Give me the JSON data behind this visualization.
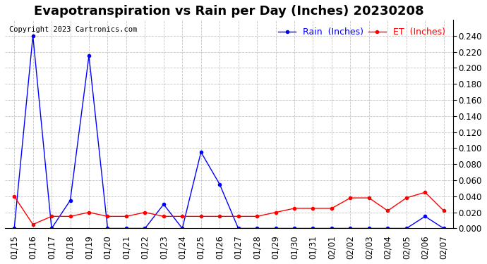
{
  "title": "Evapotranspiration vs Rain per Day (Inches) 20230208",
  "copyright": "Copyright 2023 Cartronics.com",
  "legend_rain": "Rain  (Inches)",
  "legend_et": "ET  (Inches)",
  "dates": [
    "01/15",
    "01/16",
    "01/17",
    "01/18",
    "01/19",
    "01/20",
    "01/21",
    "01/22",
    "01/23",
    "01/24",
    "01/25",
    "01/26",
    "01/27",
    "01/28",
    "01/29",
    "01/30",
    "01/31",
    "02/01",
    "02/02",
    "02/03",
    "02/04",
    "02/05",
    "02/06",
    "02/07"
  ],
  "rain": [
    0.0,
    0.24,
    0.0,
    0.035,
    0.215,
    0.0,
    0.0,
    0.0,
    0.03,
    0.0,
    0.095,
    0.055,
    0.0,
    0.0,
    0.0,
    0.0,
    0.0,
    0.0,
    0.0,
    0.0,
    0.0,
    0.0,
    0.015,
    0.0
  ],
  "et": [
    0.04,
    0.005,
    0.015,
    0.015,
    0.02,
    0.015,
    0.015,
    0.02,
    0.015,
    0.015,
    0.015,
    0.015,
    0.015,
    0.015,
    0.02,
    0.025,
    0.025,
    0.025,
    0.038,
    0.038,
    0.022,
    0.038,
    0.045,
    0.022
  ],
  "rain_color": "blue",
  "et_color": "red",
  "ylim": [
    0.0,
    0.26
  ],
  "yticks": [
    0.0,
    0.02,
    0.04,
    0.06,
    0.08,
    0.1,
    0.12,
    0.14,
    0.16,
    0.18,
    0.2,
    0.22,
    0.24
  ],
  "background_color": "#ffffff",
  "grid_color": "#aaaaaa",
  "title_fontsize": 13,
  "tick_fontsize": 8.5,
  "legend_fontsize": 9,
  "copyright_fontsize": 7.5
}
